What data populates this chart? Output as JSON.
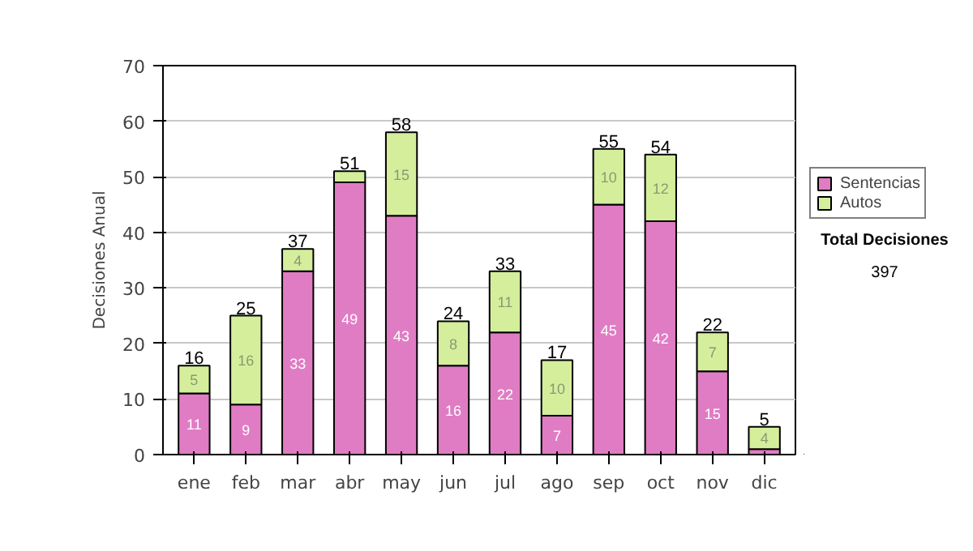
{
  "chart_data": {
    "type": "bar",
    "stacked": true,
    "ylabel": "Decisiones Anual",
    "categories": [
      "ene",
      "feb",
      "mar",
      "abr",
      "may",
      "jun",
      "jul",
      "ago",
      "sep",
      "oct",
      "nov",
      "dic"
    ],
    "series": [
      {
        "name": "Sentencias",
        "color": "#e07cc4",
        "values": [
          11,
          9,
          33,
          49,
          43,
          16,
          22,
          7,
          45,
          42,
          15,
          1
        ],
        "value_labels": [
          "11",
          "9",
          "33",
          "49",
          "43",
          "16",
          "22",
          "7",
          "45",
          "42",
          "15",
          null
        ]
      },
      {
        "name": "Autos",
        "color": "#d4ee9c",
        "values": [
          5,
          16,
          4,
          2,
          15,
          8,
          11,
          10,
          10,
          12,
          7,
          4
        ],
        "value_labels": [
          "5",
          "16",
          "4",
          null,
          "15",
          "8",
          "11",
          "10",
          "10",
          "12",
          "7",
          "4"
        ]
      }
    ],
    "totals": [
      "16",
      "25",
      "37",
      "51",
      "58",
      "24",
      "33",
      "17",
      "55",
      "54",
      "22",
      "5"
    ],
    "ylim": [
      0,
      70
    ],
    "yticks": [
      0,
      10,
      20,
      30,
      40,
      50,
      60,
      70
    ],
    "grid": "y",
    "legend": "right",
    "annotations": [
      "Total Decisiones",
      "397"
    ]
  }
}
